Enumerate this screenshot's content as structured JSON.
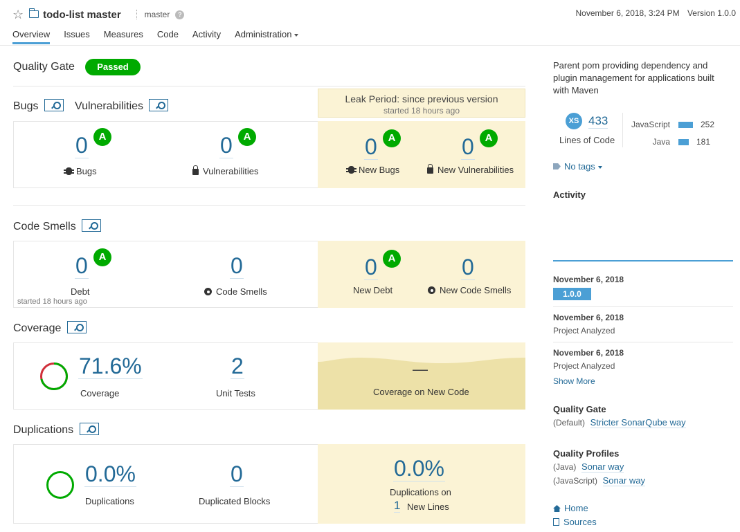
{
  "header": {
    "project_name": "todo-list master",
    "branch": "master",
    "help": "?",
    "date": "November 6, 2018, 3:24 PM",
    "version": "Version 1.0.0",
    "tabs": [
      {
        "label": "Overview"
      },
      {
        "label": "Issues"
      },
      {
        "label": "Measures"
      },
      {
        "label": "Code"
      },
      {
        "label": "Activity"
      },
      {
        "label": "Administration"
      }
    ]
  },
  "quality_gate": {
    "label": "Quality Gate",
    "status": "Passed"
  },
  "leak_period": {
    "title": "Leak Period: since previous version",
    "subtitle": "started 18 hours ago"
  },
  "bugs_vulns": {
    "bugs_title": "Bugs",
    "vulns_title": "Vulnerabilities",
    "bugs": {
      "value": "0",
      "rating": "A",
      "label": "Bugs"
    },
    "vulnerabilities": {
      "value": "0",
      "rating": "A",
      "label": "Vulnerabilities"
    },
    "new_bugs": {
      "value": "0",
      "rating": "A",
      "label": "New Bugs"
    },
    "new_vulnerabilities": {
      "value": "0",
      "rating": "A",
      "label": "New Vulnerabilities"
    }
  },
  "code_smells": {
    "title": "Code Smells",
    "debt": {
      "value": "0",
      "rating": "A",
      "label": "Debt",
      "note": "started 18 hours ago"
    },
    "smells": {
      "value": "0",
      "label": "Code Smells"
    },
    "new_debt": {
      "value": "0",
      "rating": "A",
      "label": "New Debt"
    },
    "new_smells": {
      "value": "0",
      "label": "New Code Smells"
    }
  },
  "coverage": {
    "title": "Coverage",
    "coverage": {
      "value": "71.6%",
      "label": "Coverage",
      "fraction": 0.716
    },
    "unit_tests": {
      "value": "2",
      "label": "Unit Tests"
    },
    "new_code": {
      "value": "—",
      "label": "Coverage on New Code"
    }
  },
  "duplications": {
    "title": "Duplications",
    "duplications": {
      "value": "0.0%",
      "label": "Duplications"
    },
    "blocks": {
      "value": "0",
      "label": "Duplicated Blocks"
    },
    "new_lines": {
      "value": "0.0%",
      "label_line1": "Duplications on",
      "lines_value": "1",
      "label_line2": "New Lines"
    }
  },
  "sidebar": {
    "description": "Parent pom providing dependency and plugin management for applications built with Maven",
    "size_badge": "XS",
    "lines_of_code": "433",
    "lines_of_code_label": "Lines of Code",
    "languages": [
      {
        "name": "JavaScript",
        "value": "252"
      },
      {
        "name": "Java",
        "value": "181"
      }
    ],
    "tags": "No tags",
    "activity_title": "Activity",
    "events": [
      {
        "date": "November 6, 2018",
        "badge": "1.0.0"
      },
      {
        "date": "November 6, 2018",
        "text": "Project Analyzed"
      },
      {
        "date": "November 6, 2018",
        "text": "Project Analyzed"
      }
    ],
    "show_more": "Show More",
    "quality_gate_title": "Quality Gate",
    "quality_gate_prefix": "(Default)",
    "quality_gate_link": "Stricter SonarQube way",
    "quality_profiles_title": "Quality Profiles",
    "profiles": [
      {
        "lang": "(Java)",
        "name": "Sonar way"
      },
      {
        "lang": "(JavaScript)",
        "name": "Sonar way"
      }
    ],
    "links": [
      {
        "label": "Home",
        "icon": "home-icon"
      },
      {
        "label": "Sources",
        "icon": "document-icon"
      }
    ]
  },
  "colors": {
    "accent": "#236a97",
    "pass": "#00aa00",
    "leak": "#fbf3d5",
    "bar": "#4b9fd5"
  }
}
